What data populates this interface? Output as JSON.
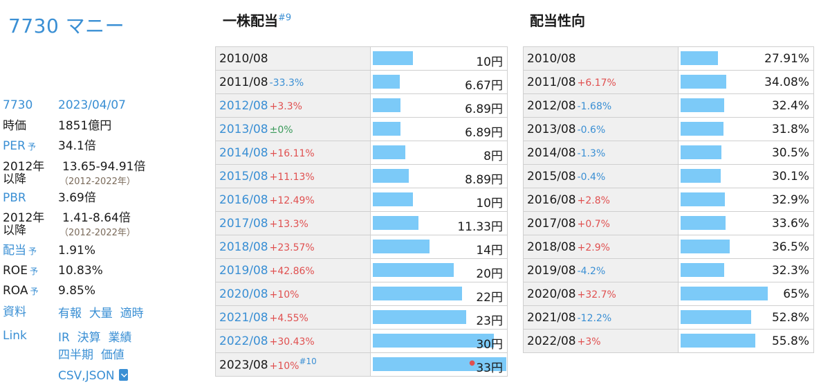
{
  "title": "7730 マニー",
  "info": {
    "code": "7730",
    "date": "2023/04/07",
    "mcap_label": "時価",
    "mcap": "1851億円",
    "per_label": "PER",
    "per": "34.1倍",
    "range_label_1": "2012年",
    "range_label_2": "以降",
    "per_range": "13.65-94.91倍",
    "per_range_period": "（2012-2022年）",
    "pbr_label": "PBR",
    "pbr": "3.69倍",
    "pbr_range": "1.41-8.64倍",
    "pbr_range_period": "（2012-2022年）",
    "div_label": "配当",
    "div": "1.91%",
    "roe_label": "ROE",
    "roe": "10.83%",
    "roa_label": "ROA",
    "roa": "9.85%",
    "yo": "予",
    "docs_label": "資料",
    "docs": [
      "有報",
      "大量",
      "適時"
    ],
    "link_label": "Link",
    "links_row1": [
      "IR",
      "決算",
      "業績"
    ],
    "links_row2": [
      "四半期",
      "価値"
    ],
    "csv": "CSV,JSON"
  },
  "dividend": {
    "title": "一株配当",
    "footnote": "#9",
    "max": 33,
    "rows": [
      {
        "year": "2010/08",
        "change": "",
        "value": 10,
        "label": "10円",
        "link": false
      },
      {
        "year": "2011/08",
        "change": "-33.3%",
        "value": 6.67,
        "label": "6.67円",
        "link": false
      },
      {
        "year": "2012/08",
        "change": "+3.3%",
        "value": 6.89,
        "label": "6.89円",
        "link": true
      },
      {
        "year": "2013/08",
        "change": "±0%",
        "value": 6.89,
        "label": "6.89円",
        "link": true
      },
      {
        "year": "2014/08",
        "change": "+16.11%",
        "value": 8,
        "label": "8円",
        "link": true
      },
      {
        "year": "2015/08",
        "change": "+11.13%",
        "value": 8.89,
        "label": "8.89円",
        "link": true
      },
      {
        "year": "2016/08",
        "change": "+12.49%",
        "value": 10,
        "label": "10円",
        "link": true
      },
      {
        "year": "2017/08",
        "change": "+13.3%",
        "value": 11.33,
        "label": "11.33円",
        "link": true
      },
      {
        "year": "2018/08",
        "change": "+23.57%",
        "value": 14,
        "label": "14円",
        "link": true
      },
      {
        "year": "2019/08",
        "change": "+42.86%",
        "value": 20,
        "label": "20円",
        "link": true
      },
      {
        "year": "2020/08",
        "change": "+10%",
        "value": 22,
        "label": "22円",
        "link": true
      },
      {
        "year": "2021/08",
        "change": "+4.55%",
        "value": 23,
        "label": "23円",
        "link": true
      },
      {
        "year": "2022/08",
        "change": "+30.43%",
        "value": 30,
        "label": "30円",
        "link": true
      },
      {
        "year": "2023/08",
        "change": "+10%",
        "value": 33,
        "label": "33円",
        "link": false,
        "footnote": "#10",
        "forecast": true
      }
    ]
  },
  "payout": {
    "title": "配当性向",
    "max": 65,
    "rows": [
      {
        "year": "2010/08",
        "change": "",
        "value": 27.91,
        "label": "27.91%"
      },
      {
        "year": "2011/08",
        "change": "+6.17%",
        "value": 34.08,
        "label": "34.08%"
      },
      {
        "year": "2012/08",
        "change": "-1.68%",
        "value": 32.4,
        "label": "32.4%"
      },
      {
        "year": "2013/08",
        "change": "-0.6%",
        "value": 31.8,
        "label": "31.8%"
      },
      {
        "year": "2014/08",
        "change": "-1.3%",
        "value": 30.5,
        "label": "30.5%"
      },
      {
        "year": "2015/08",
        "change": "-0.4%",
        "value": 30.1,
        "label": "30.1%"
      },
      {
        "year": "2016/08",
        "change": "+2.8%",
        "value": 32.9,
        "label": "32.9%"
      },
      {
        "year": "2017/08",
        "change": "+0.7%",
        "value": 33.6,
        "label": "33.6%"
      },
      {
        "year": "2018/08",
        "change": "+2.9%",
        "value": 36.5,
        "label": "36.5%"
      },
      {
        "year": "2019/08",
        "change": "-4.2%",
        "value": 32.3,
        "label": "32.3%"
      },
      {
        "year": "2020/08",
        "change": "+32.7%",
        "value": 65,
        "label": "65%"
      },
      {
        "year": "2021/08",
        "change": "-12.2%",
        "value": 52.8,
        "label": "52.8%"
      },
      {
        "year": "2022/08",
        "change": "+3%",
        "value": 55.8,
        "label": "55.8%"
      }
    ]
  }
}
